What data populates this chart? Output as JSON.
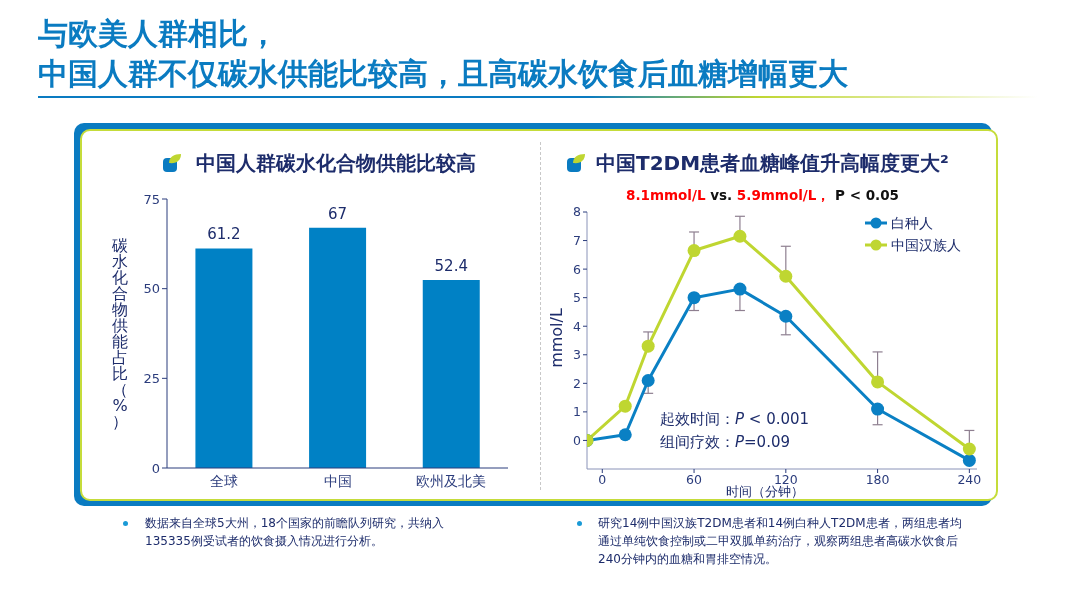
{
  "chart_data": [
    {
      "type": "bar",
      "title": "中国人群碳水化合物供能比较高",
      "ylabel": "碳水化合物供能占比（%）",
      "categories": [
        "全球",
        "中国",
        "欧州及北美"
      ],
      "values": [
        61.2,
        67,
        52.4
      ],
      "color": "#0081c5",
      "ylim": [
        0,
        75
      ],
      "yticks": [
        0,
        25,
        50,
        75
      ],
      "data_labels": true,
      "annotations": [
        "与欧美人群相比，",
        "中国人群不仅碳水供能比较高，且高碳水饮食后血糖增幅更大",
        "数据来自全球5大州，18个国家的前瞻队列研究，共纳入135335例受试者的饮食摄入情况进行分析。"
      ]
    },
    {
      "type": "line",
      "title": "中国T2DM患者血糖峰值升高幅度更大²",
      "subtitle": "8.1mmol/L vs. 5.9mmol/L， P < 0.05",
      "xlabel": "时间（分钟）",
      "ylabel": "mmol/L",
      "x": [
        -10,
        15,
        30,
        60,
        90,
        120,
        180,
        240
      ],
      "series": [
        {
          "name": "白种人",
          "color": "#0a80c4",
          "values": [
            0,
            0.2,
            2.1,
            5.0,
            5.3,
            4.35,
            1.1,
            -0.7
          ],
          "errors": [
            null,
            null,
            [
              1.65,
              2.1
            ],
            [
              4.55,
              5.0
            ],
            [
              4.55,
              5.3
            ],
            [
              3.7,
              4.35
            ],
            [
              0.55,
              1.1
            ],
            null
          ]
        },
        {
          "name": "中国汉族人",
          "color": "#bfd631",
          "values": [
            0,
            1.2,
            3.3,
            6.65,
            7.15,
            5.75,
            2.05,
            -0.3
          ],
          "errors": [
            null,
            null,
            [
              3.3,
              3.8
            ],
            [
              6.65,
              7.3
            ],
            [
              7.15,
              7.85
            ],
            [
              5.75,
              6.8
            ],
            [
              2.05,
              3.1
            ],
            [
              -0.3,
              0.35
            ]
          ]
        }
      ],
      "xlim": [
        -10,
        245
      ],
      "xticks": [
        0,
        60,
        120,
        180,
        240
      ],
      "ylim": [
        -1,
        8
      ],
      "yticks": [
        0,
        1,
        2,
        3,
        4,
        5,
        6,
        7,
        8
      ],
      "legend": "top right",
      "marker": "circle",
      "line_style": "solid",
      "annotations": [
        "起效时间：P < 0.001",
        "组间疗效：P=0.09",
        "研究14例中国汉族T2DM患者和14例白种人T2DM患者，两组患者均通过单纯饮食控制或二甲双胍单药治疗，观察两组患者高碳水饮食后240分钟内的血糖和胃排空情况。"
      ]
    }
  ]
}
